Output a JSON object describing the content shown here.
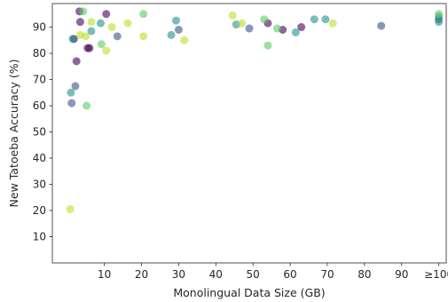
{
  "chart_data": {
    "type": "scatter",
    "title": "",
    "xlabel": "Monolingual Data Size (GB)",
    "ylabel": "New Tatoeba Accuracy (%)",
    "xlim": [
      -4,
      102
    ],
    "ylim": [
      0,
      99
    ],
    "x_ticks": [
      10,
      20,
      30,
      40,
      50,
      60,
      70,
      80,
      90,
      100
    ],
    "x_tick_labels": [
      "10",
      "20",
      "30",
      "40",
      "50",
      "60",
      "70",
      "80",
      "90",
      "≥100"
    ],
    "y_ticks": [
      10,
      20,
      30,
      40,
      50,
      60,
      70,
      80,
      90
    ],
    "y_tick_labels": [
      "10",
      "20",
      "30",
      "40",
      "50",
      "60",
      "70",
      "80",
      "90"
    ],
    "grid": false,
    "legend": null,
    "marker_alpha": 0.6,
    "series": [
      {
        "color": "#440154",
        "points": [
          {
            "x": 1.8,
            "y": 85.5
          },
          {
            "x": 2.5,
            "y": 77
          },
          {
            "x": 3.3,
            "y": 96
          },
          {
            "x": 3.5,
            "y": 92
          },
          {
            "x": 5.5,
            "y": 82
          },
          {
            "x": 6.0,
            "y": 82
          },
          {
            "x": 10.5,
            "y": 95
          },
          {
            "x": 54.0,
            "y": 91.5
          },
          {
            "x": 58.0,
            "y": 89
          },
          {
            "x": 63.0,
            "y": 90
          }
        ]
      },
      {
        "color": "#3b528b",
        "points": [
          {
            "x": 1.2,
            "y": 61
          },
          {
            "x": 2.2,
            "y": 67.5
          },
          {
            "x": 13.5,
            "y": 86.5
          },
          {
            "x": 30.0,
            "y": 89
          },
          {
            "x": 49.0,
            "y": 89.5
          },
          {
            "x": 84.5,
            "y": 90.5
          },
          {
            "x": 100.0,
            "y": 93
          }
        ]
      },
      {
        "color": "#21918c",
        "points": [
          {
            "x": 1.0,
            "y": 65
          },
          {
            "x": 1.5,
            "y": 85.5
          },
          {
            "x": 6.5,
            "y": 88.5
          },
          {
            "x": 9.0,
            "y": 91.5
          },
          {
            "x": 28.0,
            "y": 87
          },
          {
            "x": 29.3,
            "y": 92.5
          },
          {
            "x": 45.5,
            "y": 91
          },
          {
            "x": 61.5,
            "y": 88
          },
          {
            "x": 66.5,
            "y": 93
          },
          {
            "x": 69.5,
            "y": 93
          },
          {
            "x": 100.0,
            "y": 94
          },
          {
            "x": 100.0,
            "y": 92
          }
        ]
      },
      {
        "color": "#5ec962",
        "points": [
          {
            "x": 4.3,
            "y": 96
          },
          {
            "x": 5.2,
            "y": 60
          },
          {
            "x": 9.2,
            "y": 83.5
          },
          {
            "x": 20.5,
            "y": 95
          },
          {
            "x": 53.0,
            "y": 93
          },
          {
            "x": 54.0,
            "y": 83
          },
          {
            "x": 56.5,
            "y": 89.5
          },
          {
            "x": 100.0,
            "y": 95
          }
        ]
      },
      {
        "color": "#bddf26",
        "points": [
          {
            "x": 0.8,
            "y": 20.5
          },
          {
            "x": 3.5,
            "y": 87
          },
          {
            "x": 5.0,
            "y": 86.5
          },
          {
            "x": 6.5,
            "y": 92
          },
          {
            "x": 10.5,
            "y": 81
          },
          {
            "x": 12.0,
            "y": 90
          },
          {
            "x": 16.3,
            "y": 91.5
          },
          {
            "x": 20.5,
            "y": 86.5
          },
          {
            "x": 31.5,
            "y": 85
          },
          {
            "x": 44.5,
            "y": 94.5
          },
          {
            "x": 47.0,
            "y": 91.5
          },
          {
            "x": 71.5,
            "y": 91.5
          }
        ]
      }
    ]
  }
}
